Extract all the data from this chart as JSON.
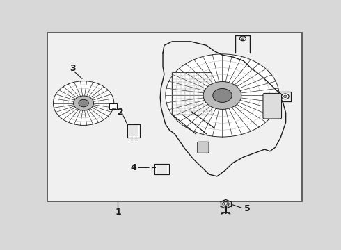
{
  "bg_color": "#d8d8d8",
  "box_color": "#f0f0f0",
  "line_color": "#1a1a1a",
  "figsize": [
    4.9,
    3.6
  ],
  "dpi": 100
}
